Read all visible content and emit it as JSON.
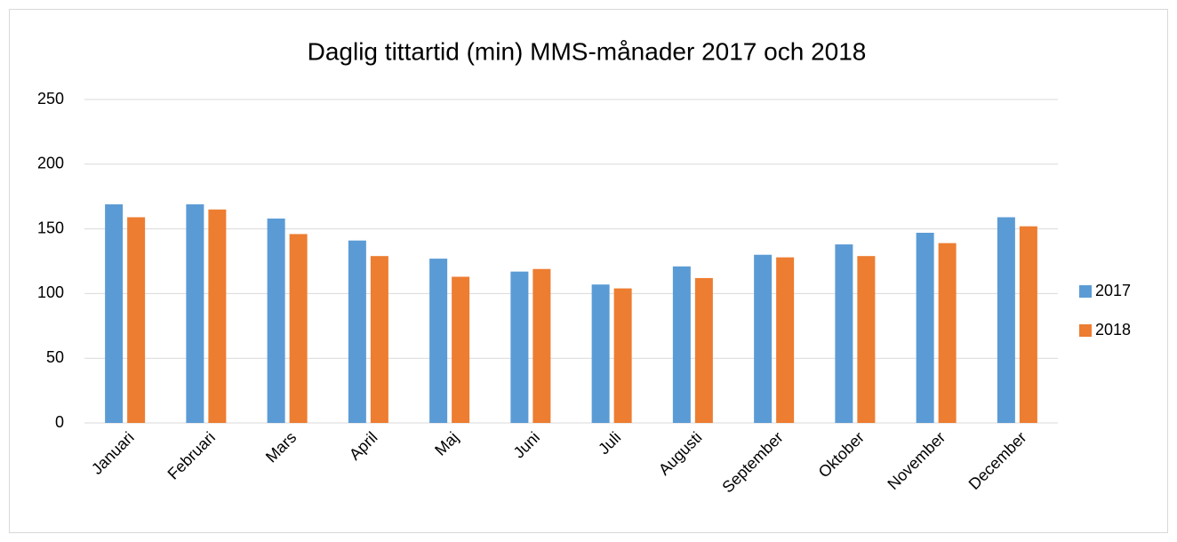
{
  "chart_data": {
    "type": "bar",
    "title": "Daglig tittartid (min) MMS-månader 2017 och 2018",
    "categories": [
      "Januari",
      "Februari",
      "Mars",
      "April",
      "Maj",
      "Juni",
      "Juli",
      "Augusti",
      "September",
      "Oktober",
      "November",
      "December"
    ],
    "series": [
      {
        "name": "2017",
        "color": "#5b9bd5",
        "values": [
          169,
          169,
          158,
          141,
          127,
          117,
          107,
          121,
          130,
          138,
          147,
          159
        ]
      },
      {
        "name": "2018",
        "color": "#ed7d31",
        "values": [
          159,
          165,
          146,
          129,
          113,
          119,
          104,
          112,
          128,
          129,
          139,
          152
        ]
      }
    ],
    "ylim": [
      0,
      250
    ],
    "yticks": [
      0,
      50,
      100,
      150,
      200,
      250
    ],
    "grid": true,
    "legend": "right"
  }
}
